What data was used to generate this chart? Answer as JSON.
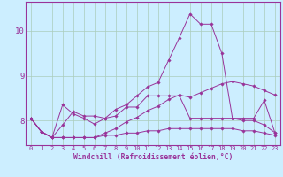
{
  "xlabel": "Windchill (Refroidissement éolien,°C)",
  "bg_color": "#cceeff",
  "grid_color": "#aaccbb",
  "line_color": "#993399",
  "spine_color": "#993399",
  "xlim": [
    -0.5,
    23.5
  ],
  "ylim": [
    7.45,
    10.65
  ],
  "xticks": [
    0,
    1,
    2,
    3,
    4,
    5,
    6,
    7,
    8,
    9,
    10,
    11,
    12,
    13,
    14,
    15,
    16,
    17,
    18,
    19,
    20,
    21,
    22,
    23
  ],
  "yticks": [
    8,
    9,
    10
  ],
  "series": [
    [
      8.05,
      7.75,
      7.62,
      8.35,
      8.15,
      8.05,
      7.92,
      8.05,
      8.25,
      8.35,
      8.55,
      8.75,
      8.85,
      9.35,
      9.85,
      10.38,
      10.15,
      10.15,
      9.5,
      8.05,
      8.05,
      8.05,
      8.45,
      7.73
    ],
    [
      8.05,
      7.75,
      7.62,
      7.9,
      8.2,
      8.1,
      8.1,
      8.05,
      8.1,
      8.3,
      8.3,
      8.55,
      8.55,
      8.55,
      8.55,
      8.05,
      8.05,
      8.05,
      8.05,
      8.05,
      8.0,
      8.0,
      7.9,
      7.73
    ],
    [
      8.05,
      7.75,
      7.62,
      7.62,
      7.62,
      7.62,
      7.62,
      7.67,
      7.67,
      7.72,
      7.72,
      7.77,
      7.77,
      7.82,
      7.82,
      7.82,
      7.82,
      7.82,
      7.82,
      7.82,
      7.77,
      7.77,
      7.72,
      7.67
    ],
    [
      8.05,
      7.75,
      7.62,
      7.62,
      7.62,
      7.62,
      7.62,
      7.72,
      7.82,
      7.97,
      8.07,
      8.22,
      8.32,
      8.47,
      8.57,
      8.52,
      8.62,
      8.72,
      8.82,
      8.87,
      8.82,
      8.77,
      8.67,
      8.57
    ]
  ]
}
